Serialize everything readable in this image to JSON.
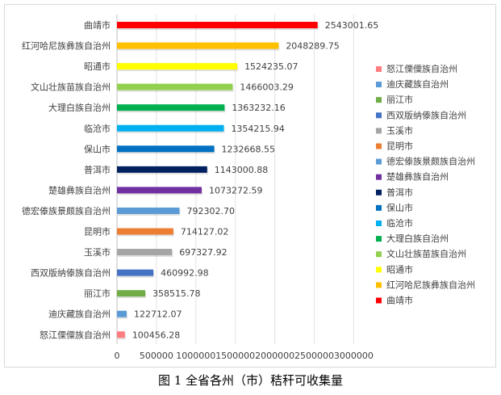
{
  "chart_data": {
    "type": "bar",
    "orientation": "horizontal",
    "categories": [
      "曲靖市",
      "红河哈尼族彝族自治州",
      "昭通市",
      "文山壮族苗族自治州",
      "大理白族自治州",
      "临沧市",
      "保山市",
      "普洱市",
      "楚雄彝族自治州",
      "德宏傣族景颇族自治州",
      "昆明市",
      "玉溪市",
      "西双版纳傣族自治州",
      "丽江市",
      "迪庆藏族自治州",
      "怒江傈僳族自治州"
    ],
    "values": [
      2543001.65,
      2048289.75,
      1524235.07,
      1466003.29,
      1363232.16,
      1354215.94,
      1232668.55,
      1143000.88,
      1073272.59,
      792302.7,
      714127.02,
      697327.92,
      460992.98,
      358515.78,
      122712.07,
      100456.28
    ],
    "value_labels": [
      "2543001.65",
      "2048289.75",
      "1524235.07",
      "1466003.29",
      "1363232.16",
      "1354215.94",
      "1232668.55",
      "1143000.88",
      "1073272.59",
      "792302.70",
      "714127.02",
      "697327.92",
      "460992.98",
      "358515.78",
      "122712.07",
      "100456.28"
    ],
    "colors": [
      "#ff0000",
      "#ffc000",
      "#ffff00",
      "#92d050",
      "#00b050",
      "#00b0f0",
      "#0070c0",
      "#002060",
      "#7030a0",
      "#5b9bd5",
      "#ed7d31",
      "#a5a5a5",
      "#4472c4",
      "#70ad47",
      "#5b9bd5",
      "#ff7c80"
    ],
    "xlim": [
      0,
      3000000
    ],
    "xticks": [
      "0",
      "500000",
      "1000000",
      "1500000",
      "2000000",
      "2500000",
      "3000000"
    ],
    "xtick_values": [
      0,
      500000,
      1000000,
      1500000,
      2000000,
      2500000,
      3000000
    ],
    "gridlines": true,
    "legend_position": "right",
    "legend_order": [
      "怒江傈僳族自治州",
      "迪庆藏族自治州",
      "丽江市",
      "西双版纳傣族自治州",
      "玉溪市",
      "昆明市",
      "德宏傣族景颇族自治州",
      "楚雄彝族自治州",
      "普洱市",
      "保山市",
      "临沧市",
      "大理白族自治州",
      "文山壮族苗族自治州",
      "昭通市",
      "红河哈尼族彝族自治州",
      "曲靖市"
    ],
    "caption": "图 1  全省各州（市）秸秆可收集量"
  }
}
